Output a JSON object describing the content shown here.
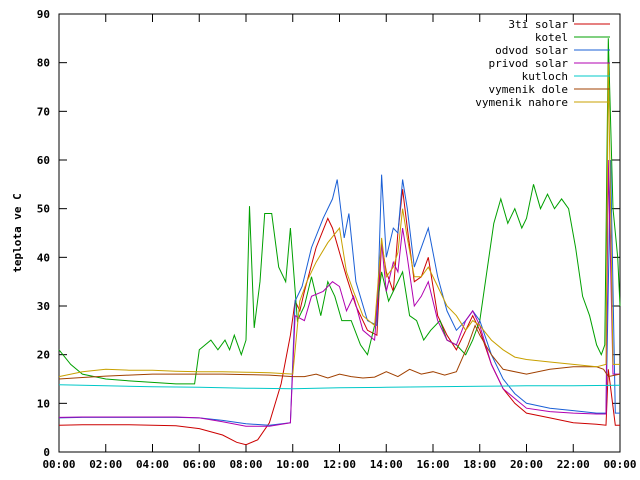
{
  "chart_data": {
    "type": "line",
    "ylabel": "teplota ve C",
    "xlabel": "",
    "xlim": [
      0,
      24
    ],
    "ylim": [
      0,
      90
    ],
    "x_ticks": [
      "00:00",
      "02:00",
      "04:00",
      "06:00",
      "08:00",
      "10:00",
      "12:00",
      "14:00",
      "16:00",
      "18:00",
      "20:00",
      "22:00",
      "00:00"
    ],
    "y_ticks": [
      "0",
      "10",
      "20",
      "30",
      "40",
      "50",
      "60",
      "70",
      "80",
      "90"
    ],
    "grid": false,
    "legend_position": "top-right",
    "series": [
      {
        "name": "3ti solar",
        "color": "#cc0000",
        "points": [
          [
            0,
            5.5
          ],
          [
            1,
            5.6
          ],
          [
            2,
            5.6
          ],
          [
            3,
            5.6
          ],
          [
            4,
            5.5
          ],
          [
            5,
            5.4
          ],
          [
            6,
            4.8
          ],
          [
            7,
            3.5
          ],
          [
            7.6,
            2
          ],
          [
            8,
            1.5
          ],
          [
            8.5,
            2.5
          ],
          [
            9,
            6
          ],
          [
            9.5,
            14
          ],
          [
            9.9,
            24
          ],
          [
            10.1,
            31
          ],
          [
            10.3,
            29
          ],
          [
            10.5,
            33
          ],
          [
            11,
            42
          ],
          [
            11.5,
            48
          ],
          [
            11.7,
            46
          ],
          [
            12,
            41
          ],
          [
            12.3,
            36
          ],
          [
            12.7,
            30
          ],
          [
            13.2,
            25
          ],
          [
            13.6,
            24
          ],
          [
            13.8,
            43
          ],
          [
            14,
            37
          ],
          [
            14.3,
            33
          ],
          [
            14.5,
            45
          ],
          [
            14.7,
            54
          ],
          [
            14.9,
            46
          ],
          [
            15.2,
            35
          ],
          [
            15.5,
            36
          ],
          [
            15.8,
            40
          ],
          [
            16.2,
            28
          ],
          [
            16.6,
            24
          ],
          [
            17,
            21
          ],
          [
            17.4,
            25
          ],
          [
            17.7,
            28
          ],
          [
            18,
            25
          ],
          [
            18.5,
            18
          ],
          [
            19,
            13
          ],
          [
            19.5,
            10
          ],
          [
            20,
            8
          ],
          [
            21,
            7
          ],
          [
            22,
            6
          ],
          [
            23,
            5.7
          ],
          [
            23.4,
            5.5
          ],
          [
            23.5,
            17
          ],
          [
            23.8,
            5.5
          ],
          [
            24,
            5.5
          ]
        ]
      },
      {
        "name": "kotel",
        "color": "#00a000",
        "points": [
          [
            0,
            21
          ],
          [
            0.5,
            18
          ],
          [
            1,
            16
          ],
          [
            2,
            15
          ],
          [
            3,
            14.6
          ],
          [
            4,
            14.3
          ],
          [
            5,
            14
          ],
          [
            5.8,
            14
          ],
          [
            6,
            21
          ],
          [
            6.5,
            23
          ],
          [
            6.8,
            21
          ],
          [
            7.1,
            23
          ],
          [
            7.3,
            21
          ],
          [
            7.5,
            24
          ],
          [
            7.8,
            20
          ],
          [
            8,
            23
          ],
          [
            8.15,
            50.5
          ],
          [
            8.35,
            25.5
          ],
          [
            8.6,
            35
          ],
          [
            8.8,
            49
          ],
          [
            9.1,
            49
          ],
          [
            9.4,
            38
          ],
          [
            9.7,
            35
          ],
          [
            9.9,
            46
          ],
          [
            10.2,
            27
          ],
          [
            10.5,
            30
          ],
          [
            10.8,
            36
          ],
          [
            11.2,
            28
          ],
          [
            11.5,
            35
          ],
          [
            11.8,
            32
          ],
          [
            12.1,
            27
          ],
          [
            12.5,
            27
          ],
          [
            12.9,
            22
          ],
          [
            13.2,
            20
          ],
          [
            13.5,
            26
          ],
          [
            13.8,
            37
          ],
          [
            14.1,
            31
          ],
          [
            14.4,
            34
          ],
          [
            14.7,
            37
          ],
          [
            15,
            28
          ],
          [
            15.3,
            27
          ],
          [
            15.6,
            23
          ],
          [
            15.9,
            25
          ],
          [
            16.3,
            27
          ],
          [
            16.6,
            23
          ],
          [
            17,
            22
          ],
          [
            17.4,
            20
          ],
          [
            17.7,
            23
          ],
          [
            18,
            27
          ],
          [
            18.3,
            37
          ],
          [
            18.6,
            47
          ],
          [
            18.9,
            52
          ],
          [
            19.2,
            47
          ],
          [
            19.5,
            50
          ],
          [
            19.8,
            46
          ],
          [
            20,
            48
          ],
          [
            20.3,
            55
          ],
          [
            20.6,
            50
          ],
          [
            20.9,
            53
          ],
          [
            21.2,
            50
          ],
          [
            21.5,
            52
          ],
          [
            21.8,
            50
          ],
          [
            22.1,
            42
          ],
          [
            22.4,
            32
          ],
          [
            22.7,
            28
          ],
          [
            23,
            22
          ],
          [
            23.2,
            20
          ],
          [
            23.35,
            22
          ],
          [
            23.5,
            85
          ],
          [
            23.7,
            50
          ],
          [
            23.9,
            40
          ],
          [
            24,
            30
          ]
        ]
      },
      {
        "name": "odvod solar",
        "color": "#1a5fd6",
        "points": [
          [
            0,
            7
          ],
          [
            1,
            7.1
          ],
          [
            2,
            7.1
          ],
          [
            3,
            7.1
          ],
          [
            4,
            7.1
          ],
          [
            5,
            7.1
          ],
          [
            6,
            7
          ],
          [
            7,
            6.5
          ],
          [
            8,
            5.8
          ],
          [
            9,
            5.5
          ],
          [
            9.9,
            6
          ],
          [
            10.1,
            31
          ],
          [
            10.4,
            34
          ],
          [
            10.8,
            42
          ],
          [
            11.3,
            48
          ],
          [
            11.7,
            52
          ],
          [
            11.9,
            56
          ],
          [
            12.2,
            44
          ],
          [
            12.4,
            49
          ],
          [
            12.7,
            35
          ],
          [
            13.2,
            27
          ],
          [
            13.6,
            26
          ],
          [
            13.8,
            57
          ],
          [
            14,
            40
          ],
          [
            14.3,
            46
          ],
          [
            14.5,
            45
          ],
          [
            14.7,
            56
          ],
          [
            14.9,
            50
          ],
          [
            15.2,
            38
          ],
          [
            15.5,
            42
          ],
          [
            15.8,
            46
          ],
          [
            16.2,
            36
          ],
          [
            16.6,
            29
          ],
          [
            17,
            25
          ],
          [
            17.4,
            27
          ],
          [
            17.7,
            29
          ],
          [
            18,
            27
          ],
          [
            18.5,
            20
          ],
          [
            19,
            15
          ],
          [
            19.5,
            12
          ],
          [
            20,
            10
          ],
          [
            21,
            9
          ],
          [
            22,
            8.5
          ],
          [
            23,
            8
          ],
          [
            23.4,
            8
          ],
          [
            23.6,
            60
          ],
          [
            23.8,
            8
          ],
          [
            24,
            8
          ]
        ]
      },
      {
        "name": "privod solar",
        "color": "#b000b0",
        "points": [
          [
            0,
            7.1
          ],
          [
            1,
            7.2
          ],
          [
            2,
            7.2
          ],
          [
            3,
            7.2
          ],
          [
            4,
            7.2
          ],
          [
            5,
            7.2
          ],
          [
            6,
            7
          ],
          [
            7,
            6.2
          ],
          [
            8,
            5.3
          ],
          [
            9,
            5.3
          ],
          [
            9.9,
            6
          ],
          [
            10.1,
            28
          ],
          [
            10.5,
            27
          ],
          [
            10.8,
            32
          ],
          [
            11.3,
            33
          ],
          [
            11.7,
            35
          ],
          [
            12,
            34
          ],
          [
            12.3,
            29
          ],
          [
            12.6,
            32
          ],
          [
            13,
            25
          ],
          [
            13.5,
            23
          ],
          [
            13.8,
            43
          ],
          [
            14,
            33
          ],
          [
            14.3,
            39
          ],
          [
            14.5,
            37
          ],
          [
            14.7,
            46
          ],
          [
            14.9,
            40
          ],
          [
            15.2,
            30
          ],
          [
            15.5,
            32
          ],
          [
            15.8,
            35
          ],
          [
            16.2,
            27
          ],
          [
            16.6,
            23
          ],
          [
            17,
            22
          ],
          [
            17.4,
            27
          ],
          [
            17.7,
            29
          ],
          [
            18,
            26
          ],
          [
            18.5,
            18
          ],
          [
            19,
            13
          ],
          [
            19.5,
            11
          ],
          [
            20,
            9
          ],
          [
            21,
            8.3
          ],
          [
            22,
            8
          ],
          [
            23,
            7.8
          ],
          [
            23.4,
            7.8
          ],
          [
            23.5,
            60
          ],
          [
            23.7,
            16
          ],
          [
            24,
            16
          ]
        ]
      },
      {
        "name": "kutloch",
        "color": "#00c8c8",
        "points": [
          [
            0,
            13.8
          ],
          [
            2,
            13.6
          ],
          [
            4,
            13.4
          ],
          [
            6,
            13.3
          ],
          [
            8,
            13.1
          ],
          [
            10,
            13
          ],
          [
            12,
            13.2
          ],
          [
            14,
            13.3
          ],
          [
            16,
            13.4
          ],
          [
            18,
            13.5
          ],
          [
            20,
            13.6
          ],
          [
            22,
            13.6
          ],
          [
            24,
            13.7
          ]
        ]
      },
      {
        "name": "vymenik dole",
        "color": "#a04000",
        "points": [
          [
            0,
            15
          ],
          [
            1,
            15.3
          ],
          [
            2,
            15.6
          ],
          [
            3,
            15.8
          ],
          [
            4,
            16
          ],
          [
            5,
            16
          ],
          [
            6,
            16
          ],
          [
            7,
            16
          ],
          [
            8,
            15.9
          ],
          [
            9,
            15.8
          ],
          [
            10,
            15.5
          ],
          [
            10.5,
            15.5
          ],
          [
            11,
            16
          ],
          [
            11.5,
            15.2
          ],
          [
            12,
            16
          ],
          [
            12.5,
            15.5
          ],
          [
            13,
            15.2
          ],
          [
            13.5,
            15.4
          ],
          [
            14,
            16.5
          ],
          [
            14.5,
            15.5
          ],
          [
            15,
            17
          ],
          [
            15.5,
            16
          ],
          [
            16,
            16.5
          ],
          [
            16.5,
            15.8
          ],
          [
            17,
            16.5
          ],
          [
            17.5,
            22
          ],
          [
            17.8,
            26
          ],
          [
            18,
            24
          ],
          [
            18.5,
            20
          ],
          [
            19,
            17
          ],
          [
            20,
            16
          ],
          [
            21,
            17
          ],
          [
            22,
            17.5
          ],
          [
            23,
            17.5
          ],
          [
            23.3,
            17
          ],
          [
            23.5,
            15.5
          ],
          [
            24,
            16
          ]
        ]
      },
      {
        "name": "vymenik nahore",
        "color": "#c8a000",
        "points": [
          [
            0,
            15.5
          ],
          [
            1,
            16.5
          ],
          [
            2,
            17
          ],
          [
            3,
            16.8
          ],
          [
            4,
            16.8
          ],
          [
            5,
            16.6
          ],
          [
            6,
            16.5
          ],
          [
            7,
            16.5
          ],
          [
            8,
            16.4
          ],
          [
            9,
            16.3
          ],
          [
            10,
            16
          ],
          [
            10.3,
            31
          ],
          [
            10.6,
            35
          ],
          [
            11,
            39
          ],
          [
            11.5,
            43
          ],
          [
            12,
            46
          ],
          [
            12.3,
            37
          ],
          [
            12.6,
            33
          ],
          [
            13,
            28
          ],
          [
            13.5,
            26
          ],
          [
            13.8,
            44
          ],
          [
            14,
            36
          ],
          [
            14.3,
            38
          ],
          [
            14.5,
            41
          ],
          [
            14.7,
            50
          ],
          [
            14.9,
            44
          ],
          [
            15.2,
            36
          ],
          [
            15.5,
            36
          ],
          [
            15.8,
            38
          ],
          [
            16.2,
            34
          ],
          [
            16.6,
            30
          ],
          [
            17,
            28
          ],
          [
            17.4,
            25
          ],
          [
            17.7,
            27
          ],
          [
            18,
            26
          ],
          [
            18.5,
            23
          ],
          [
            19,
            21
          ],
          [
            19.5,
            19.5
          ],
          [
            20,
            19
          ],
          [
            21,
            18.5
          ],
          [
            22,
            18
          ],
          [
            23,
            17.5
          ],
          [
            23.4,
            18
          ],
          [
            23.5,
            80
          ],
          [
            23.7,
            18
          ],
          [
            24,
            18
          ]
        ]
      }
    ]
  }
}
